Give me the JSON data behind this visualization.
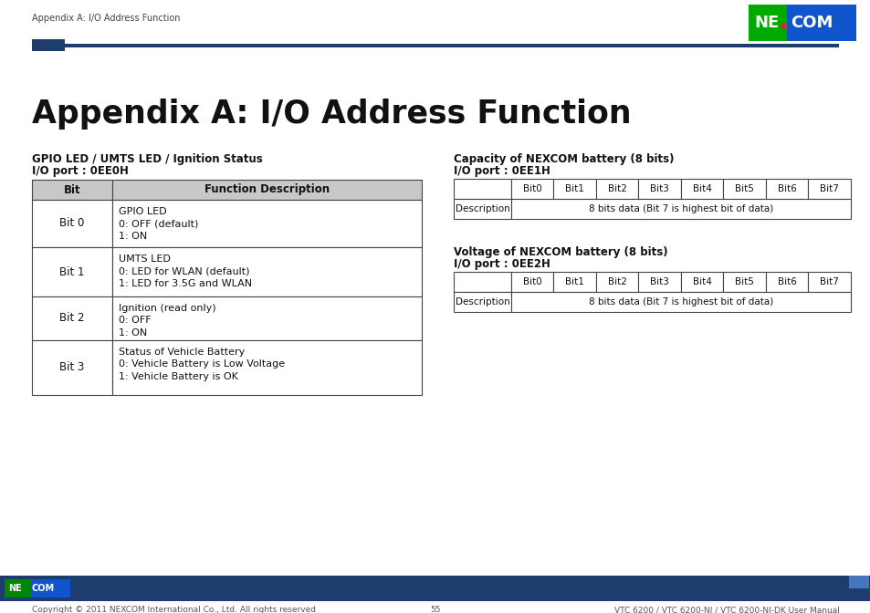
{
  "page_header_text": "Appendix A: I/O Address Function",
  "main_title": "Appendix A: I/O Address Function",
  "header_line_color": "#1c3d6e",
  "header_square_color": "#1c3d6e",
  "nexcom_green": "#00aa00",
  "nexcom_blue": "#1155bb",
  "left_section_title": "GPIO LED / UMTS LED / Ignition Status",
  "left_section_port": "I/O port : 0EE0H",
  "left_table_headers": [
    "Bit",
    "Function Description"
  ],
  "left_table_rows": [
    [
      "Bit 0",
      "GPIO LED\n0: OFF (default)\n1: ON"
    ],
    [
      "Bit 1",
      "UMTS LED\n0: LED for WLAN (default)\n1: LED for 3.5G and WLAN"
    ],
    [
      "Bit 2",
      "Ignition (read only)\n0: OFF\n1: ON"
    ],
    [
      "Bit 3",
      "Status of Vehicle Battery\n0: Vehicle Battery is Low Voltage\n1: Vehicle Battery is OK"
    ]
  ],
  "right_section1_title": "Capacity of NEXCOM battery (8 bits)",
  "right_section1_port": "I/O port : 0EE1H",
  "right_section2_title": "Voltage of NEXCOM battery (8 bits)",
  "right_section2_port": "I/O port : 0EE2H",
  "right_table_headers": [
    "",
    "Bit0",
    "Bit1",
    "Bit2",
    "Bit3",
    "Bit4",
    "Bit5",
    "Bit6",
    "Bit7"
  ],
  "right_table_row": [
    "Description",
    "8 bits data (Bit 7 is highest bit of data)"
  ],
  "table_header_bg": "#c8c8c8",
  "table_border_color": "#444444",
  "footer_bar_color": "#1c3d6e",
  "footer_text_left": "Copyright © 2011 NEXCOM International Co., Ltd. All rights reserved",
  "footer_text_center": "55",
  "footer_text_right": "VTC 6200 / VTC 6200-NI / VTC 6200-NI-DK User Manual",
  "bg_color": "#ffffff"
}
